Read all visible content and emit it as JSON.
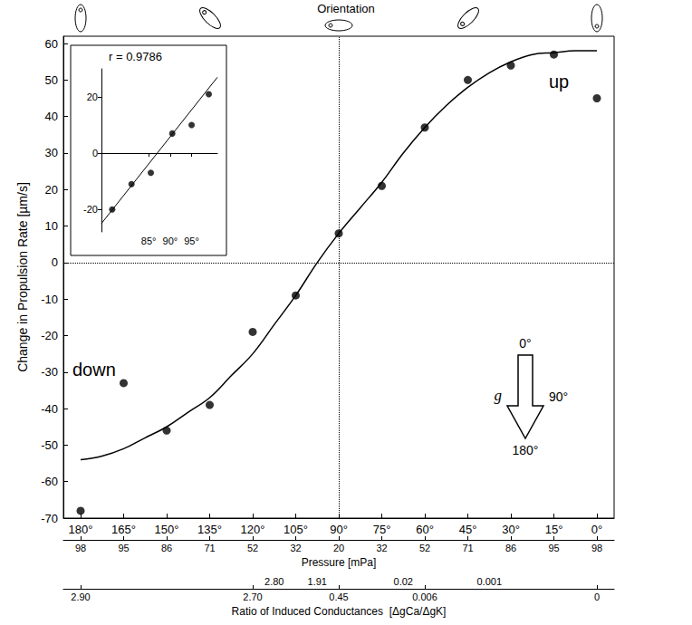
{
  "chart_data": {
    "type": "scatter",
    "header": "Orientation",
    "y_label": "Change in Propulsion Rate [µm/s]",
    "xlim": [
      186,
      -6
    ],
    "ylim": [
      -70,
      62
    ],
    "xticks": [
      {
        "value": 180,
        "label": "180°"
      },
      {
        "value": 165,
        "label": "165°"
      },
      {
        "value": 150,
        "label": "150°"
      },
      {
        "value": 135,
        "label": "135°"
      },
      {
        "value": 120,
        "label": "120°"
      },
      {
        "value": 105,
        "label": "105°"
      },
      {
        "value": 90,
        "label": "90°"
      },
      {
        "value": 75,
        "label": "75°"
      },
      {
        "value": 60,
        "label": "60°"
      },
      {
        "value": 45,
        "label": "45°"
      },
      {
        "value": 30,
        "label": "30°"
      },
      {
        "value": 15,
        "label": "15°"
      },
      {
        "value": 0,
        "label": "0°"
      }
    ],
    "yticks": [
      -70,
      -60,
      -50,
      -40,
      -30,
      -20,
      -10,
      0,
      10,
      20,
      30,
      40,
      50,
      60
    ],
    "x": [
      180,
      165,
      150,
      135,
      120,
      105,
      90,
      75,
      60,
      45,
      30,
      15,
      0
    ],
    "values": [
      -68,
      -33,
      -46,
      -39,
      -19,
      -9,
      8,
      21,
      37,
      50,
      54,
      57,
      45
    ],
    "color": "#000000",
    "marker": "circle",
    "grid": false,
    "fit": {
      "type": "line",
      "line_style": "solid",
      "x": [
        180,
        172.5,
        165,
        157.5,
        150,
        142.5,
        135,
        127.5,
        120,
        112.5,
        105,
        97.5,
        90,
        82.5,
        75,
        67.5,
        60,
        52.5,
        45,
        37.5,
        30,
        22.5,
        15,
        7.5,
        0
      ],
      "values": [
        -54,
        -53,
        -51,
        -48,
        -45,
        -41,
        -37,
        -31,
        -25,
        -17,
        -9,
        0,
        8,
        15,
        22,
        30,
        37,
        43,
        48,
        52,
        55,
        57,
        57.5,
        58,
        58
      ]
    },
    "reference_lines": {
      "x": 90,
      "y": 0,
      "line_style": "dotted"
    },
    "annotations": [
      "down",
      "up"
    ],
    "gravity": {
      "label": "g",
      "angles": [
        "0°",
        "90°",
        "180°"
      ]
    },
    "pressure_axis": {
      "label": "Pressure [mPa]",
      "ticks": [
        {
          "value": 180,
          "label": "98"
        },
        {
          "value": 165,
          "label": "95"
        },
        {
          "value": 150,
          "label": "86"
        },
        {
          "value": 135,
          "label": "71"
        },
        {
          "value": 120,
          "label": "52"
        },
        {
          "value": 105,
          "label": "32"
        },
        {
          "value": 90,
          "label": "20"
        },
        {
          "value": 75,
          "label": "32"
        },
        {
          "value": 60,
          "label": "52"
        },
        {
          "value": 45,
          "label": "71"
        },
        {
          "value": 30,
          "label": "86"
        },
        {
          "value": 15,
          "label": "95"
        },
        {
          "value": 0,
          "label": "98"
        }
      ]
    },
    "ratio_axis": {
      "label": "Ratio of Induced Conductances  [ΔgCa/ΔgK]",
      "ticks": [
        {
          "value": 180,
          "label": "2.90"
        },
        {
          "value": 120,
          "label": "2.70"
        },
        {
          "value": 90,
          "label": "0.45"
        },
        {
          "value": 60,
          "label": "0.006"
        },
        {
          "value": 0,
          "label": "0"
        }
      ],
      "upper_ticks": [
        {
          "value": 112.5,
          "label": "2.80"
        },
        {
          "value": 97.5,
          "label": "1.91"
        },
        {
          "value": 67.5,
          "label": "0.02"
        },
        {
          "value": 37.5,
          "label": "0.001"
        }
      ]
    },
    "inset": {
      "annotation": "r = 0.9786",
      "xlim": [
        74,
        101
      ],
      "ylim": [
        -28,
        30
      ],
      "xticks": [
        {
          "value": 85,
          "label": "85°"
        },
        {
          "value": 90,
          "label": "90°"
        },
        {
          "value": 95,
          "label": "95°"
        }
      ],
      "yticks": [
        -20,
        0,
        20
      ],
      "x": [
        76.5,
        81,
        85.5,
        90.5,
        95,
        99
      ],
      "values": [
        -20,
        -11,
        -7,
        7,
        10,
        21
      ],
      "fit": {
        "type": "line",
        "line_style": "solid",
        "x": [
          74,
          101
        ],
        "values": [
          -25,
          27
        ]
      }
    }
  }
}
